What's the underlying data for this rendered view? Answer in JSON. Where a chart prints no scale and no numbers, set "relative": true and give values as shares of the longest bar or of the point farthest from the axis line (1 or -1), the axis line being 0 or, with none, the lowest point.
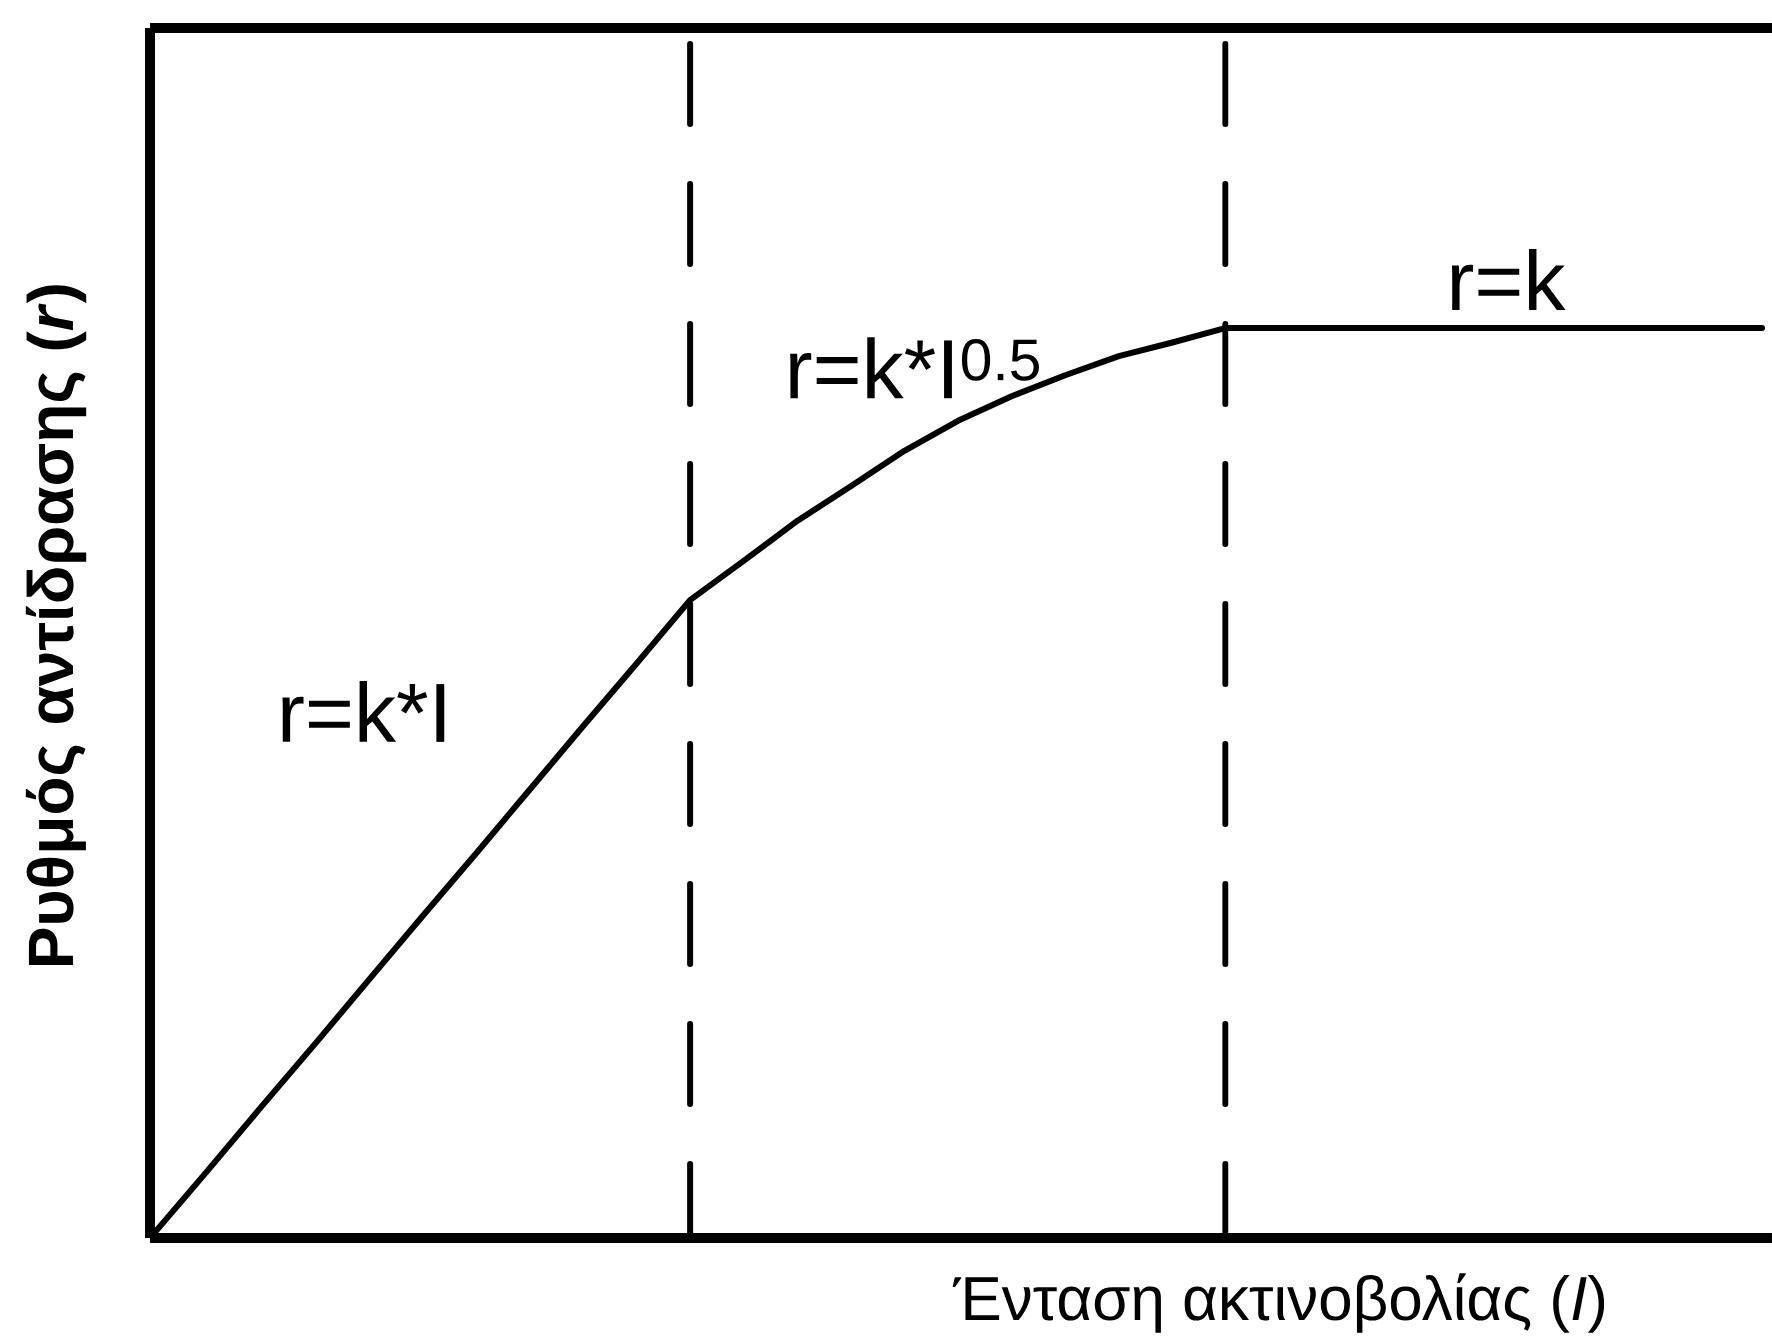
{
  "chart_data": {
    "type": "line",
    "relative": true,
    "xlabel": "Ένταση ακτινοβολίας (*I*)",
    "ylabel": "Ρυθμός αντίδρασης (*r*)",
    "categories": [
      null,
      null,
      null,
      null,
      null,
      null,
      null,
      null,
      null,
      null,
      null,
      null,
      null,
      null,
      null,
      null,
      null,
      null,
      null,
      null,
      null,
      null,
      null,
      null,
      null,
      null,
      null,
      null,
      null,
      null,
      null
    ],
    "series": [
      {
        "color": "#000000",
        "line_style": "solid",
        "values": [
          0.005,
          0.074,
          0.144,
          0.213,
          0.283,
          0.353,
          0.422,
          0.492,
          0.562,
          0.631,
          0.701,
          0.744,
          0.788,
          0.826,
          0.865,
          0.898,
          0.925,
          0.948,
          0.969,
          0.984,
          1,
          1,
          1,
          1,
          1,
          1,
          1,
          1,
          1,
          1,
          1
        ]
      }
    ],
    "annotations": [
      "r=k*I",
      "r=k*I$^{0.5}$",
      "r=k"
    ]
  }
}
